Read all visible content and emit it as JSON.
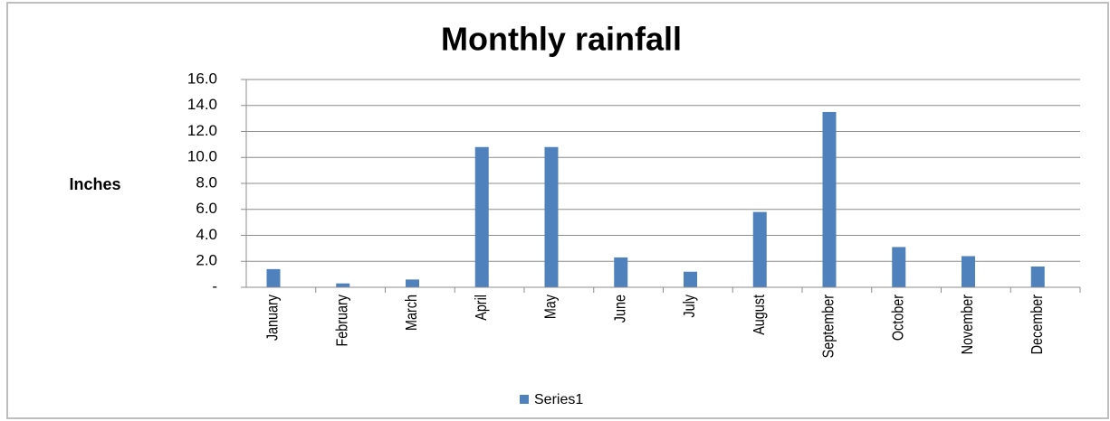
{
  "chart_data": {
    "type": "bar",
    "title": "Monthly rainfall",
    "y_label": "Inches",
    "categories": [
      "January",
      "February",
      "March",
      "April",
      "May",
      "June",
      "July",
      "August",
      "September",
      "October",
      "November",
      "December"
    ],
    "series": [
      {
        "name": "Series1",
        "color": "#4f81bd",
        "values": [
          1.4,
          0.3,
          0.6,
          10.8,
          10.8,
          2.3,
          1.2,
          5.8,
          13.5,
          3.1,
          2.4,
          1.6
        ]
      }
    ],
    "ylim": [
      0,
      16
    ],
    "yticks": [
      {
        "value": 0,
        "label": "-"
      },
      {
        "value": 2,
        "label": "2.0"
      },
      {
        "value": 4,
        "label": "4.0"
      },
      {
        "value": 6,
        "label": "6.0"
      },
      {
        "value": 8,
        "label": "8.0"
      },
      {
        "value": 10,
        "label": "10.0"
      },
      {
        "value": 12,
        "label": "12.0"
      },
      {
        "value": 14,
        "label": "14.0"
      },
      {
        "value": 16,
        "label": "16.0"
      }
    ],
    "grid": true,
    "legend": "bottom"
  }
}
